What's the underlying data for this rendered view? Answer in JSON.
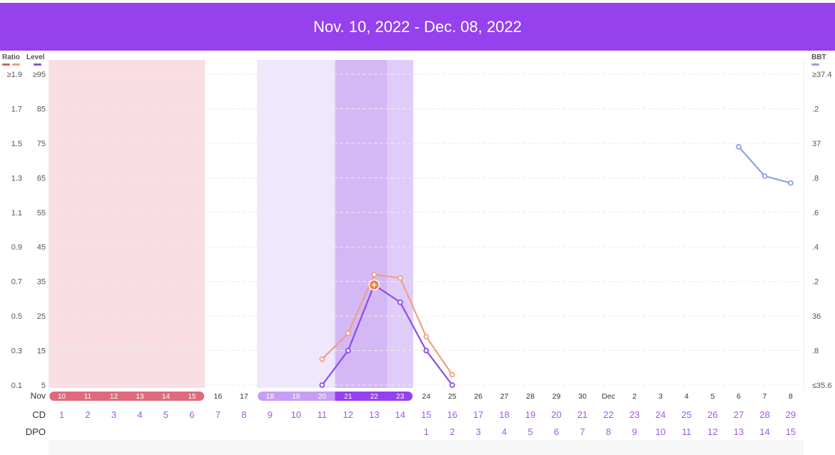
{
  "header": {
    "date_range": "Nov. 10, 2022 - Dec. 08, 2022"
  },
  "legend": {
    "ratio": "Ratio",
    "level": "Level",
    "bbt": "BBT"
  },
  "colors": {
    "header": "#9541ee",
    "ratio": "#eda085",
    "level": "#8b4de8",
    "bbt": "#8da3e6",
    "ratio_legend_a": "#d0606e",
    "period_band": "#f8dde3",
    "period_pill": "#e06a7c",
    "fertile_light": "#efe7fb",
    "fertile_mid": "#e0ccf8",
    "fertile_dark": "#d4b7f5",
    "fertile_pill_light": "#c79ef5",
    "fertile_pill_dark": "#9541ee",
    "peak_marker": "#f07a3e"
  },
  "chart_data": {
    "type": "line",
    "x": [
      10,
      11,
      12,
      13,
      14,
      15,
      16,
      17,
      18,
      19,
      20,
      21,
      22,
      23,
      24,
      25,
      26,
      27,
      28,
      29,
      30,
      1,
      2,
      3,
      4,
      5,
      6,
      7,
      8
    ],
    "x_month_labels": {
      "0": "Nov",
      "21": "Dec"
    },
    "date_tick_labels": [
      "10",
      "11",
      "12",
      "13",
      "14",
      "15",
      "16",
      "17",
      "18",
      "19",
      "20",
      "21",
      "22",
      "23",
      "24",
      "25",
      "26",
      "27",
      "28",
      "29",
      "30",
      "Dec",
      "2",
      "3",
      "4",
      "5",
      "6",
      "7",
      "8"
    ],
    "left_axis_ratio": {
      "label": "Ratio",
      "ticks": [
        "≥1.9",
        "1.7",
        "1.5",
        "1.3",
        "1.1",
        "0.9",
        "0.7",
        "0.5",
        "0.3",
        "0.1"
      ],
      "ylim": [
        0.1,
        1.9
      ]
    },
    "left_axis_level": {
      "label": "Level",
      "ticks": [
        "≥95",
        "85",
        "75",
        "65",
        "55",
        "45",
        "35",
        "25",
        "15",
        "5"
      ],
      "ylim": [
        5,
        95
      ]
    },
    "right_axis_bbt": {
      "label": "BBT",
      "ticks": [
        "≥37.4",
        ".2",
        "37",
        ".8",
        ".6",
        ".4",
        ".2",
        "36",
        ".8",
        "≤35.6"
      ],
      "ylim": [
        35.6,
        37.4
      ]
    },
    "series": [
      {
        "name": "Ratio",
        "points": [
          [
            20,
            0.25
          ],
          [
            21,
            0.4
          ],
          [
            22,
            0.74
          ],
          [
            23,
            0.72
          ],
          [
            24,
            0.38
          ],
          [
            25,
            0.16
          ]
        ]
      },
      {
        "name": "Level",
        "points": [
          [
            20,
            5
          ],
          [
            21,
            15
          ],
          [
            22,
            34
          ],
          [
            23,
            29
          ],
          [
            24,
            15
          ],
          [
            25,
            5
          ]
        ]
      },
      {
        "name": "BBT",
        "points": [
          [
            6,
            36.98
          ],
          [
            7,
            36.81
          ],
          [
            8,
            36.77
          ]
        ]
      }
    ],
    "peak_day": 22,
    "period_days": [
      10,
      11,
      12,
      13,
      14,
      15
    ],
    "fertile_light_days": [
      18,
      19,
      20
    ],
    "fertile_dark_days": [
      21,
      22
    ],
    "fertile_mid_days": [
      23
    ],
    "row_labels": {
      "month": "Nov",
      "cd": "CD",
      "dpo": "DPO"
    },
    "cd": [
      "1",
      "2",
      "3",
      "4",
      "5",
      "6",
      "7",
      "8",
      "9",
      "10",
      "11",
      "12",
      "13",
      "14",
      "15",
      "16",
      "17",
      "18",
      "19",
      "20",
      "21",
      "22",
      "23",
      "24",
      "25",
      "26",
      "27",
      "28",
      "29"
    ],
    "dpo": [
      "",
      "",
      "",
      "",
      "",
      "",
      "",
      "",
      "",
      "",
      "",
      "",
      "",
      "",
      "1",
      "2",
      "3",
      "4",
      "5",
      "6",
      "7",
      "8",
      "9",
      "10",
      "11",
      "12",
      "13",
      "14",
      "15"
    ],
    "grid": true
  }
}
